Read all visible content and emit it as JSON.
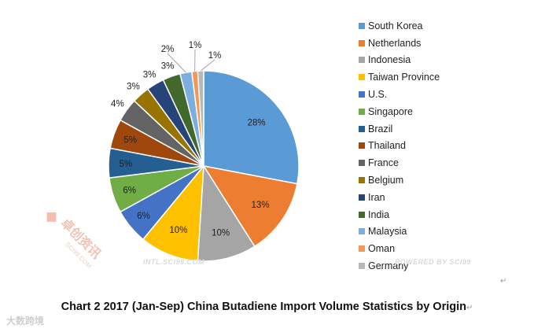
{
  "chart_data": {
    "type": "pie",
    "title": "Chart 2 2017 (Jan-Sep) China Butadiene Import Volume Statistics by Origin",
    "labels": [
      "South Korea",
      "Netherlands",
      "Indonesia",
      "Taiwan Province",
      "U.S.",
      "Singapore",
      "Brazil",
      "Thailand",
      "France",
      "Belgium",
      "Iran",
      "India",
      "Malaysia",
      "Oman",
      "Germany"
    ],
    "values": [
      28,
      13,
      10,
      10,
      6,
      6,
      5,
      5,
      4,
      3,
      3,
      3,
      2,
      1,
      1
    ],
    "data_labels": [
      "28%",
      "13%",
      "10%",
      "10%",
      "6%",
      "6%",
      "5%",
      "5%",
      "4%",
      "3%",
      "3%",
      "3%",
      "2%",
      "1%",
      "1%"
    ],
    "colors": [
      "#5B9BD5",
      "#ED7D31",
      "#A5A5A5",
      "#FFC000",
      "#4472C4",
      "#70AD47",
      "#255E91",
      "#9E480E",
      "#636363",
      "#997300",
      "#264478",
      "#43682B",
      "#7CAFDD",
      "#F1975A",
      "#B7B7B7"
    ],
    "legend_position": "right"
  },
  "watermarks": {
    "center": "INTL.SCI99.COM",
    "right": "POWERED BY SCI99",
    "left_logo": "卓创资讯",
    "left_sub": "SCI99.COM",
    "bottom_left": "大数跨境"
  },
  "caption_return_mark": "↵"
}
